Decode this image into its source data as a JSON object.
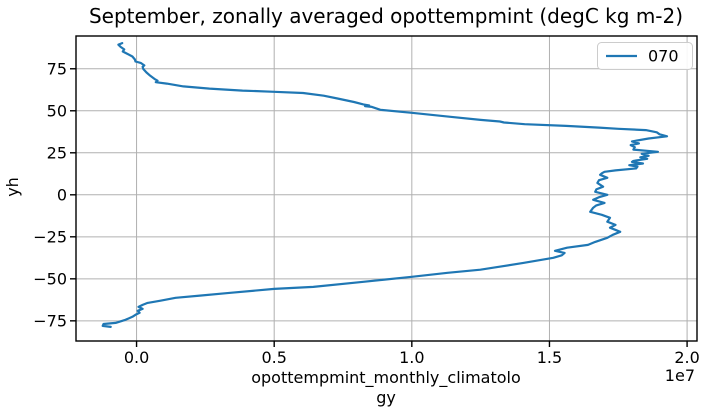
{
  "figure": {
    "background": "#ffffff"
  },
  "colors": {
    "line": "#1f77b4",
    "grid": "#b0b0b0",
    "spine": "#000000",
    "text": "#000000",
    "legend_border": "#cccccc"
  },
  "chart_data": {
    "type": "line",
    "title": "September, zonally averaged opottempmint (degC kg m-2)",
    "xlabel": "opottempmint_monthly_climatology",
    "xlabel_lines": [
      "opottempmint_monthly_climatolo",
      "gy"
    ],
    "ylabel": "yh",
    "x_offset_text": "1e7",
    "xlim": [
      -2200000,
      20360000
    ],
    "ylim": [
      -87,
      94.5
    ],
    "grid": true,
    "legend_position": "upper right",
    "xticks": {
      "values": [
        0,
        5000000,
        10000000,
        15000000,
        20000000
      ],
      "labels": [
        "0.0",
        "0.5",
        "1.0",
        "1.5",
        "2.0"
      ]
    },
    "yticks": {
      "values": [
        75,
        50,
        25,
        0,
        -25,
        -50,
        -75
      ],
      "labels": [
        "75",
        "50",
        "25",
        "0",
        "−25",
        "−50",
        "−75"
      ]
    },
    "series": [
      {
        "name": "070",
        "color": "#1f77b4",
        "points": [
          [
            -520000,
            90.3
          ],
          [
            -660000,
            89.3
          ],
          [
            -580000,
            88.0
          ],
          [
            -450000,
            86.5
          ],
          [
            -500000,
            85.3
          ],
          [
            -350000,
            84.0
          ],
          [
            -150000,
            82.3
          ],
          [
            -60000,
            80.5
          ],
          [
            -40000,
            79.3
          ],
          [
            150000,
            78.5
          ],
          [
            280000,
            77.0
          ],
          [
            220000,
            76.2
          ],
          [
            250000,
            74.8
          ],
          [
            360000,
            72.8
          ],
          [
            500000,
            70.8
          ],
          [
            650000,
            69.0
          ],
          [
            760000,
            67.9
          ],
          [
            700000,
            67.0
          ],
          [
            1100000,
            66.2
          ],
          [
            1700000,
            64.5
          ],
          [
            2650000,
            63.2
          ],
          [
            3850000,
            62.0
          ],
          [
            5000000,
            61.3
          ],
          [
            6050000,
            60.6
          ],
          [
            6800000,
            59.0
          ],
          [
            7300000,
            57.3
          ],
          [
            7900000,
            55.2
          ],
          [
            8240000,
            53.8
          ],
          [
            8450000,
            53.2
          ],
          [
            8300000,
            52.8
          ],
          [
            8550000,
            52.3
          ],
          [
            8860000,
            50.6
          ],
          [
            10000000,
            48.8
          ],
          [
            11400000,
            46.4
          ],
          [
            12500000,
            44.6
          ],
          [
            13200000,
            43.6
          ],
          [
            13350000,
            43.0
          ],
          [
            14100000,
            42.0
          ],
          [
            15600000,
            41.0
          ],
          [
            16800000,
            40.0
          ],
          [
            17500000,
            39.3
          ],
          [
            18500000,
            38.5
          ],
          [
            18900000,
            37.2
          ],
          [
            19000000,
            36.0
          ],
          [
            19270000,
            34.8
          ],
          [
            18600000,
            33.5
          ],
          [
            18000000,
            31.8
          ],
          [
            18250000,
            30.6
          ],
          [
            17950000,
            29.6
          ],
          [
            18100000,
            28.3
          ],
          [
            18050000,
            26.9
          ],
          [
            18940000,
            25.6
          ],
          [
            18350000,
            24.4
          ],
          [
            18600000,
            23.2
          ],
          [
            18300000,
            22.3
          ],
          [
            18550000,
            21.4
          ],
          [
            18050000,
            20.2
          ],
          [
            18000000,
            19.6
          ],
          [
            18400000,
            18.6
          ],
          [
            17900000,
            17.6
          ],
          [
            18200000,
            16.8
          ],
          [
            18150000,
            15.7
          ],
          [
            17400000,
            14.5
          ],
          [
            17000000,
            13.7
          ],
          [
            16900000,
            12.8
          ],
          [
            16840000,
            11.9
          ],
          [
            17100000,
            10.1
          ],
          [
            16800000,
            8.7
          ],
          [
            16740000,
            7.1
          ],
          [
            16950000,
            4.8
          ],
          [
            16700000,
            3.2
          ],
          [
            16660000,
            1.8
          ],
          [
            17100000,
            0.0
          ],
          [
            16800000,
            -1.4
          ],
          [
            16590000,
            -3.0
          ],
          [
            17000000,
            -4.8
          ],
          [
            16700000,
            -6.3
          ],
          [
            16590000,
            -7.7
          ],
          [
            16480000,
            -10.1
          ],
          [
            16900000,
            -11.9
          ],
          [
            17200000,
            -13.7
          ],
          [
            17100000,
            -16.0
          ],
          [
            17400000,
            -17.9
          ],
          [
            17200000,
            -19.6
          ],
          [
            17570000,
            -22.0
          ],
          [
            17300000,
            -23.8
          ],
          [
            17100000,
            -25.6
          ],
          [
            16660000,
            -28.0
          ],
          [
            16400000,
            -29.8
          ],
          [
            15640000,
            -31.5
          ],
          [
            15200000,
            -33.3
          ],
          [
            15550000,
            -34.6
          ],
          [
            15450000,
            -36.0
          ],
          [
            15140000,
            -37.5
          ],
          [
            14050000,
            -40.5
          ],
          [
            13100000,
            -43.0
          ],
          [
            12490000,
            -44.6
          ],
          [
            11300000,
            -46.4
          ],
          [
            10000000,
            -48.8
          ],
          [
            8240000,
            -51.8
          ],
          [
            6420000,
            -54.8
          ],
          [
            5000000,
            -56.0
          ],
          [
            3410000,
            -58.3
          ],
          [
            2300000,
            -60.0
          ],
          [
            1420000,
            -61.3
          ],
          [
            870000,
            -63.0
          ],
          [
            400000,
            -64.3
          ],
          [
            220000,
            -65.5
          ],
          [
            70000,
            -66.7
          ],
          [
            220000,
            -67.9
          ],
          [
            40000,
            -69.0
          ],
          [
            110000,
            -70.2
          ],
          [
            -40000,
            -71.4
          ],
          [
            -150000,
            -72.6
          ],
          [
            -400000,
            -74.4
          ],
          [
            -760000,
            -76.2
          ],
          [
            -1200000,
            -76.9
          ],
          [
            -1230000,
            -78.0
          ],
          [
            -940000,
            -78.6
          ]
        ]
      }
    ]
  }
}
